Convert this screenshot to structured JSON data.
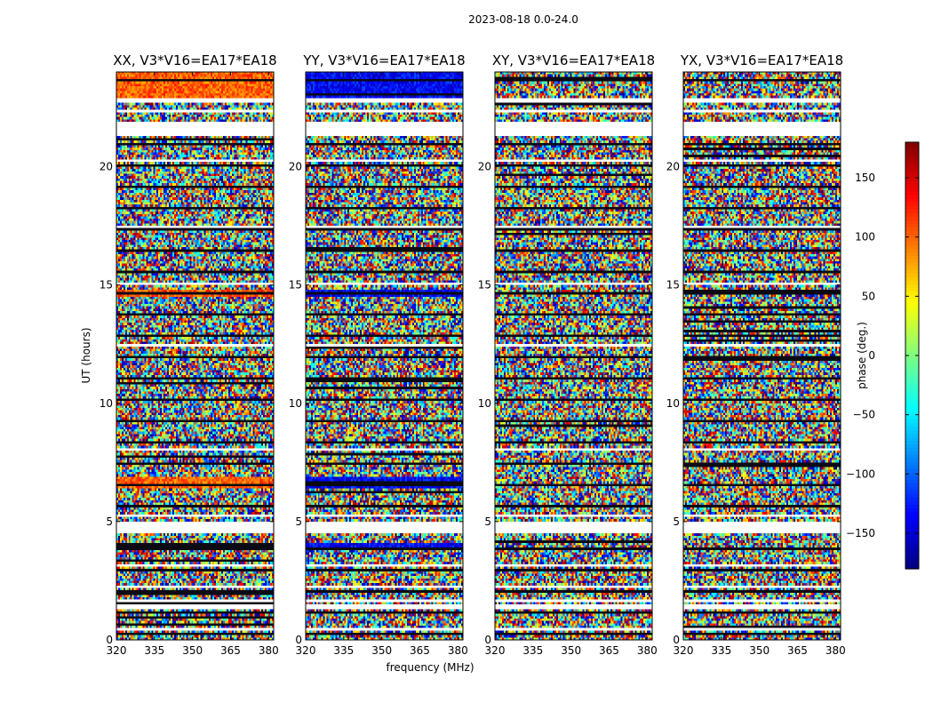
{
  "chart_data": {
    "type": "heatmap",
    "suptitle": "2023-08-18 0.0-24.0",
    "xlabel": "frequency (MHz)",
    "ylabel": "UT (hours)",
    "xlim": [
      320,
      382
    ],
    "ylim": [
      0,
      24
    ],
    "xticks": [
      320,
      335,
      350,
      365,
      380
    ],
    "yticks": [
      0,
      5,
      10,
      15,
      20
    ],
    "panels": [
      {
        "title": "XX, V3*V16=EA17*EA18",
        "pol": "XX"
      },
      {
        "title": "YY, V3*V16=EA17*EA18",
        "pol": "YY"
      },
      {
        "title": "XY, V3*V16=EA17*EA18",
        "pol": "XY"
      },
      {
        "title": "YX, V3*V16=EA17*EA18",
        "pol": "YX"
      }
    ],
    "colorbar": {
      "label": "phase (deg.)",
      "range": [
        -180,
        180
      ],
      "ticks": [
        150,
        100,
        50,
        0,
        -50,
        -100,
        -150
      ],
      "tick_labels": [
        "150",
        "100",
        "50",
        "0",
        "−50",
        "−100",
        "−150"
      ],
      "colormap": "jet"
    },
    "flagged_ut_ranges": [
      [
        0.45,
        0.55
      ],
      [
        1.35,
        1.45
      ],
      [
        1.6,
        1.65
      ],
      [
        2.2,
        2.25
      ],
      [
        3.1,
        3.15
      ],
      [
        4.55,
        5.0
      ],
      [
        5.25,
        5.3
      ],
      [
        8.0,
        8.05
      ],
      [
        10.1,
        10.15
      ],
      [
        12.45,
        12.5
      ],
      [
        15.0,
        15.05
      ],
      [
        17.45,
        17.5
      ],
      [
        20.2,
        20.25
      ],
      [
        21.3,
        21.85
      ],
      [
        22.35,
        22.4
      ],
      [
        22.75,
        22.85
      ]
    ]
  }
}
